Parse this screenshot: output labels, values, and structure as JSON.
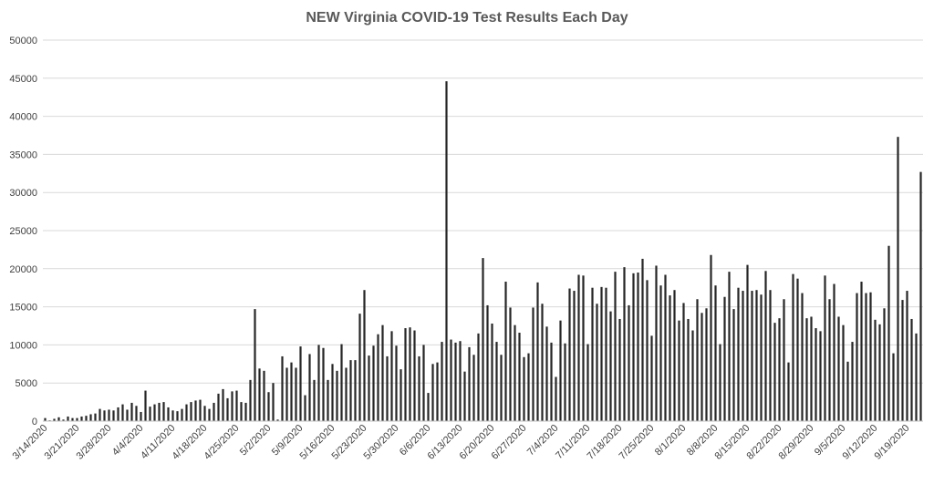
{
  "chart_data": {
    "type": "bar",
    "title": "NEW Virginia COVID-19 Test Results Each Day",
    "xlabel": "",
    "ylabel": "",
    "ylim": [
      0,
      50000
    ],
    "y_ticks": [
      0,
      5000,
      10000,
      15000,
      20000,
      25000,
      30000,
      35000,
      40000,
      45000,
      50000
    ],
    "grid": true,
    "legend": "none",
    "bar_color": "#262626",
    "x_tick_labels": [
      "3/14/2020",
      "3/21/2020",
      "3/28/2020",
      "4/4/2020",
      "4/11/2020",
      "4/18/2020",
      "4/25/2020",
      "5/2/2020",
      "5/9/2020",
      "5/16/2020",
      "5/23/2020",
      "5/30/2020",
      "6/6/2020",
      "6/13/2020",
      "6/20/2020",
      "6/27/2020",
      "7/4/2020",
      "7/11/2020",
      "7/18/2020",
      "7/25/2020",
      "8/1/2020",
      "8/8/2020",
      "8/15/2020",
      "8/22/2020",
      "8/29/2020",
      "9/5/2020",
      "9/12/2020",
      "9/19/2020"
    ],
    "categories_start": "3/14/2020",
    "values": [
      400,
      100,
      300,
      500,
      200,
      600,
      400,
      400,
      600,
      700,
      900,
      1000,
      1600,
      1400,
      1500,
      1400,
      1800,
      2200,
      1500,
      2400,
      2000,
      1200,
      4000,
      1900,
      2200,
      2400,
      2500,
      1800,
      1400,
      1300,
      1600,
      2200,
      2500,
      2700,
      2800,
      2000,
      1600,
      2400,
      3600,
      4200,
      3000,
      3900,
      4000,
      2500,
      2400,
      5400,
      14700,
      6900,
      6600,
      3800,
      5000,
      200,
      8500,
      7000,
      7700,
      7000,
      9800,
      3400,
      8800,
      5400,
      10000,
      9600,
      5400,
      7500,
      6600,
      10100,
      7000,
      8000,
      8000,
      14100,
      17200,
      8600,
      9900,
      11400,
      12600,
      8500,
      11800,
      9900,
      6800,
      12200,
      12300,
      11900,
      8500,
      10000,
      3700,
      7500,
      7700,
      10400,
      44600,
      10700,
      10300,
      10500,
      6500,
      9700,
      8700,
      11500,
      21400,
      15200,
      12800,
      10400,
      8700,
      18300,
      14900,
      12600,
      11600,
      8400,
      8900,
      14900,
      18200,
      15400,
      12400,
      10300,
      5800,
      13200,
      10200,
      17400,
      17100,
      19200,
      19100,
      10100,
      17500,
      15400,
      17600,
      17500,
      14400,
      19600,
      13400,
      20200,
      15200,
      19400,
      19500,
      21300,
      18500,
      11200,
      20400,
      17800,
      19200,
      16500,
      17200,
      13200,
      15500,
      13400,
      11900,
      16000,
      14200,
      14800,
      21800,
      17800,
      10100,
      16300,
      19600,
      14700,
      17500,
      17100,
      20500,
      17100,
      17200,
      16600,
      19700,
      17200,
      12900,
      13500,
      16000,
      7700,
      19300,
      18700,
      16800,
      13500,
      13700,
      12200,
      11800,
      19100,
      16000,
      18000,
      13700,
      12600,
      7800,
      10400,
      16800,
      18300,
      16800,
      16900,
      13300,
      12700,
      14800,
      23000,
      8900,
      37300,
      15900,
      17100,
      13400,
      11500,
      32700
    ]
  }
}
